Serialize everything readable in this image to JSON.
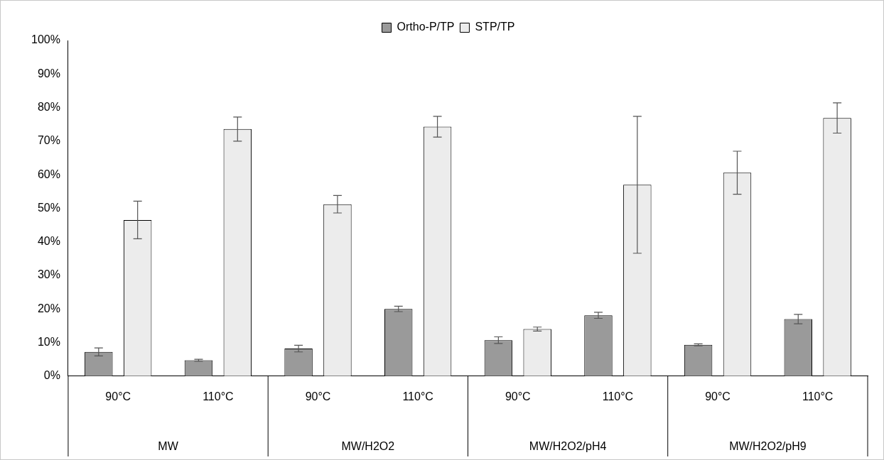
{
  "chart_data": {
    "type": "bar",
    "categories": [
      "90°C",
      "110°C",
      "90°C",
      "110°C",
      "90°C",
      "110°C",
      "90°C",
      "110°C"
    ],
    "series": [
      {
        "name": "Ortho-P/TP",
        "color": "#9a9a9a",
        "values": [
          7.2,
          4.7,
          8.2,
          20,
          10.7,
          18.1,
          9.3,
          17
        ],
        "errors": [
          1.2,
          0.3,
          1,
          0.8,
          1,
          0.9,
          0.3,
          1.4
        ]
      },
      {
        "name": "STP/TP",
        "color": "#ececec",
        "values": [
          46.5,
          73.6,
          51.2,
          74.3,
          14,
          57,
          60.6,
          76.9
        ],
        "errors": [
          5.6,
          3.6,
          2.6,
          3.1,
          0.6,
          20.4,
          6.4,
          4.5
        ]
      }
    ],
    "ylim": [
      0,
      100
    ],
    "yticks": [
      {
        "value": 0,
        "label": "0%"
      },
      {
        "value": 10,
        "label": "10%"
      },
      {
        "value": 20,
        "label": "20%"
      },
      {
        "value": 30,
        "label": "30%"
      },
      {
        "value": 40,
        "label": "40%"
      },
      {
        "value": 50,
        "label": "50%"
      },
      {
        "value": 60,
        "label": "60%"
      },
      {
        "value": 70,
        "label": "70%"
      },
      {
        "value": 80,
        "label": "80%"
      },
      {
        "value": 90,
        "label": "90%"
      },
      {
        "value": 100,
        "label": "100%"
      }
    ],
    "annotations": [
      "MW",
      "MW/H2O2",
      "MW/H2O2/pH4",
      "MW/H2O2/pH9"
    ],
    "legend": "top",
    "grid": false
  }
}
